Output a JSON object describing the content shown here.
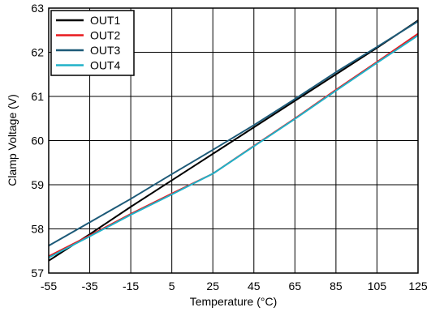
{
  "chart_data": {
    "type": "line",
    "title": "",
    "xlabel": "Temperature (°C)",
    "ylabel": "Clamp Voltage (V)",
    "xlim": [
      -55,
      125
    ],
    "ylim": [
      57,
      63
    ],
    "xticks": [
      -55,
      -35,
      -15,
      5,
      25,
      45,
      65,
      85,
      105,
      125
    ],
    "yticks": [
      57,
      58,
      59,
      60,
      61,
      62,
      63
    ],
    "grid": true,
    "legend_position": "top-left",
    "series": [
      {
        "name": "OUT1",
        "color": "#000000",
        "x": [
          -55,
          -35,
          -15,
          5,
          25,
          45,
          65,
          85,
          105,
          125
        ],
        "y": [
          57.28,
          57.88,
          58.5,
          59.1,
          59.7,
          60.3,
          60.9,
          61.5,
          62.1,
          62.72
        ]
      },
      {
        "name": "OUT2",
        "color": "#e8191e",
        "x": [
          -55,
          -35,
          -15,
          5,
          25,
          45,
          65,
          85,
          105,
          125
        ],
        "y": [
          57.38,
          57.85,
          58.34,
          58.8,
          59.25,
          59.88,
          60.5,
          61.15,
          61.78,
          62.42
        ]
      },
      {
        "name": "OUT3",
        "color": "#1d5a78",
        "x": [
          -55,
          -35,
          -15,
          5,
          25,
          45,
          65,
          85,
          105,
          125
        ],
        "y": [
          57.62,
          58.15,
          58.68,
          59.24,
          59.79,
          60.35,
          60.94,
          61.55,
          62.12,
          62.7
        ]
      },
      {
        "name": "OUT4",
        "color": "#20b2c8",
        "x": [
          -55,
          -35,
          -15,
          5,
          25,
          45,
          65,
          85,
          105,
          125
        ],
        "y": [
          57.35,
          57.83,
          58.32,
          58.78,
          59.25,
          59.87,
          60.49,
          61.13,
          61.76,
          62.38
        ]
      }
    ]
  }
}
